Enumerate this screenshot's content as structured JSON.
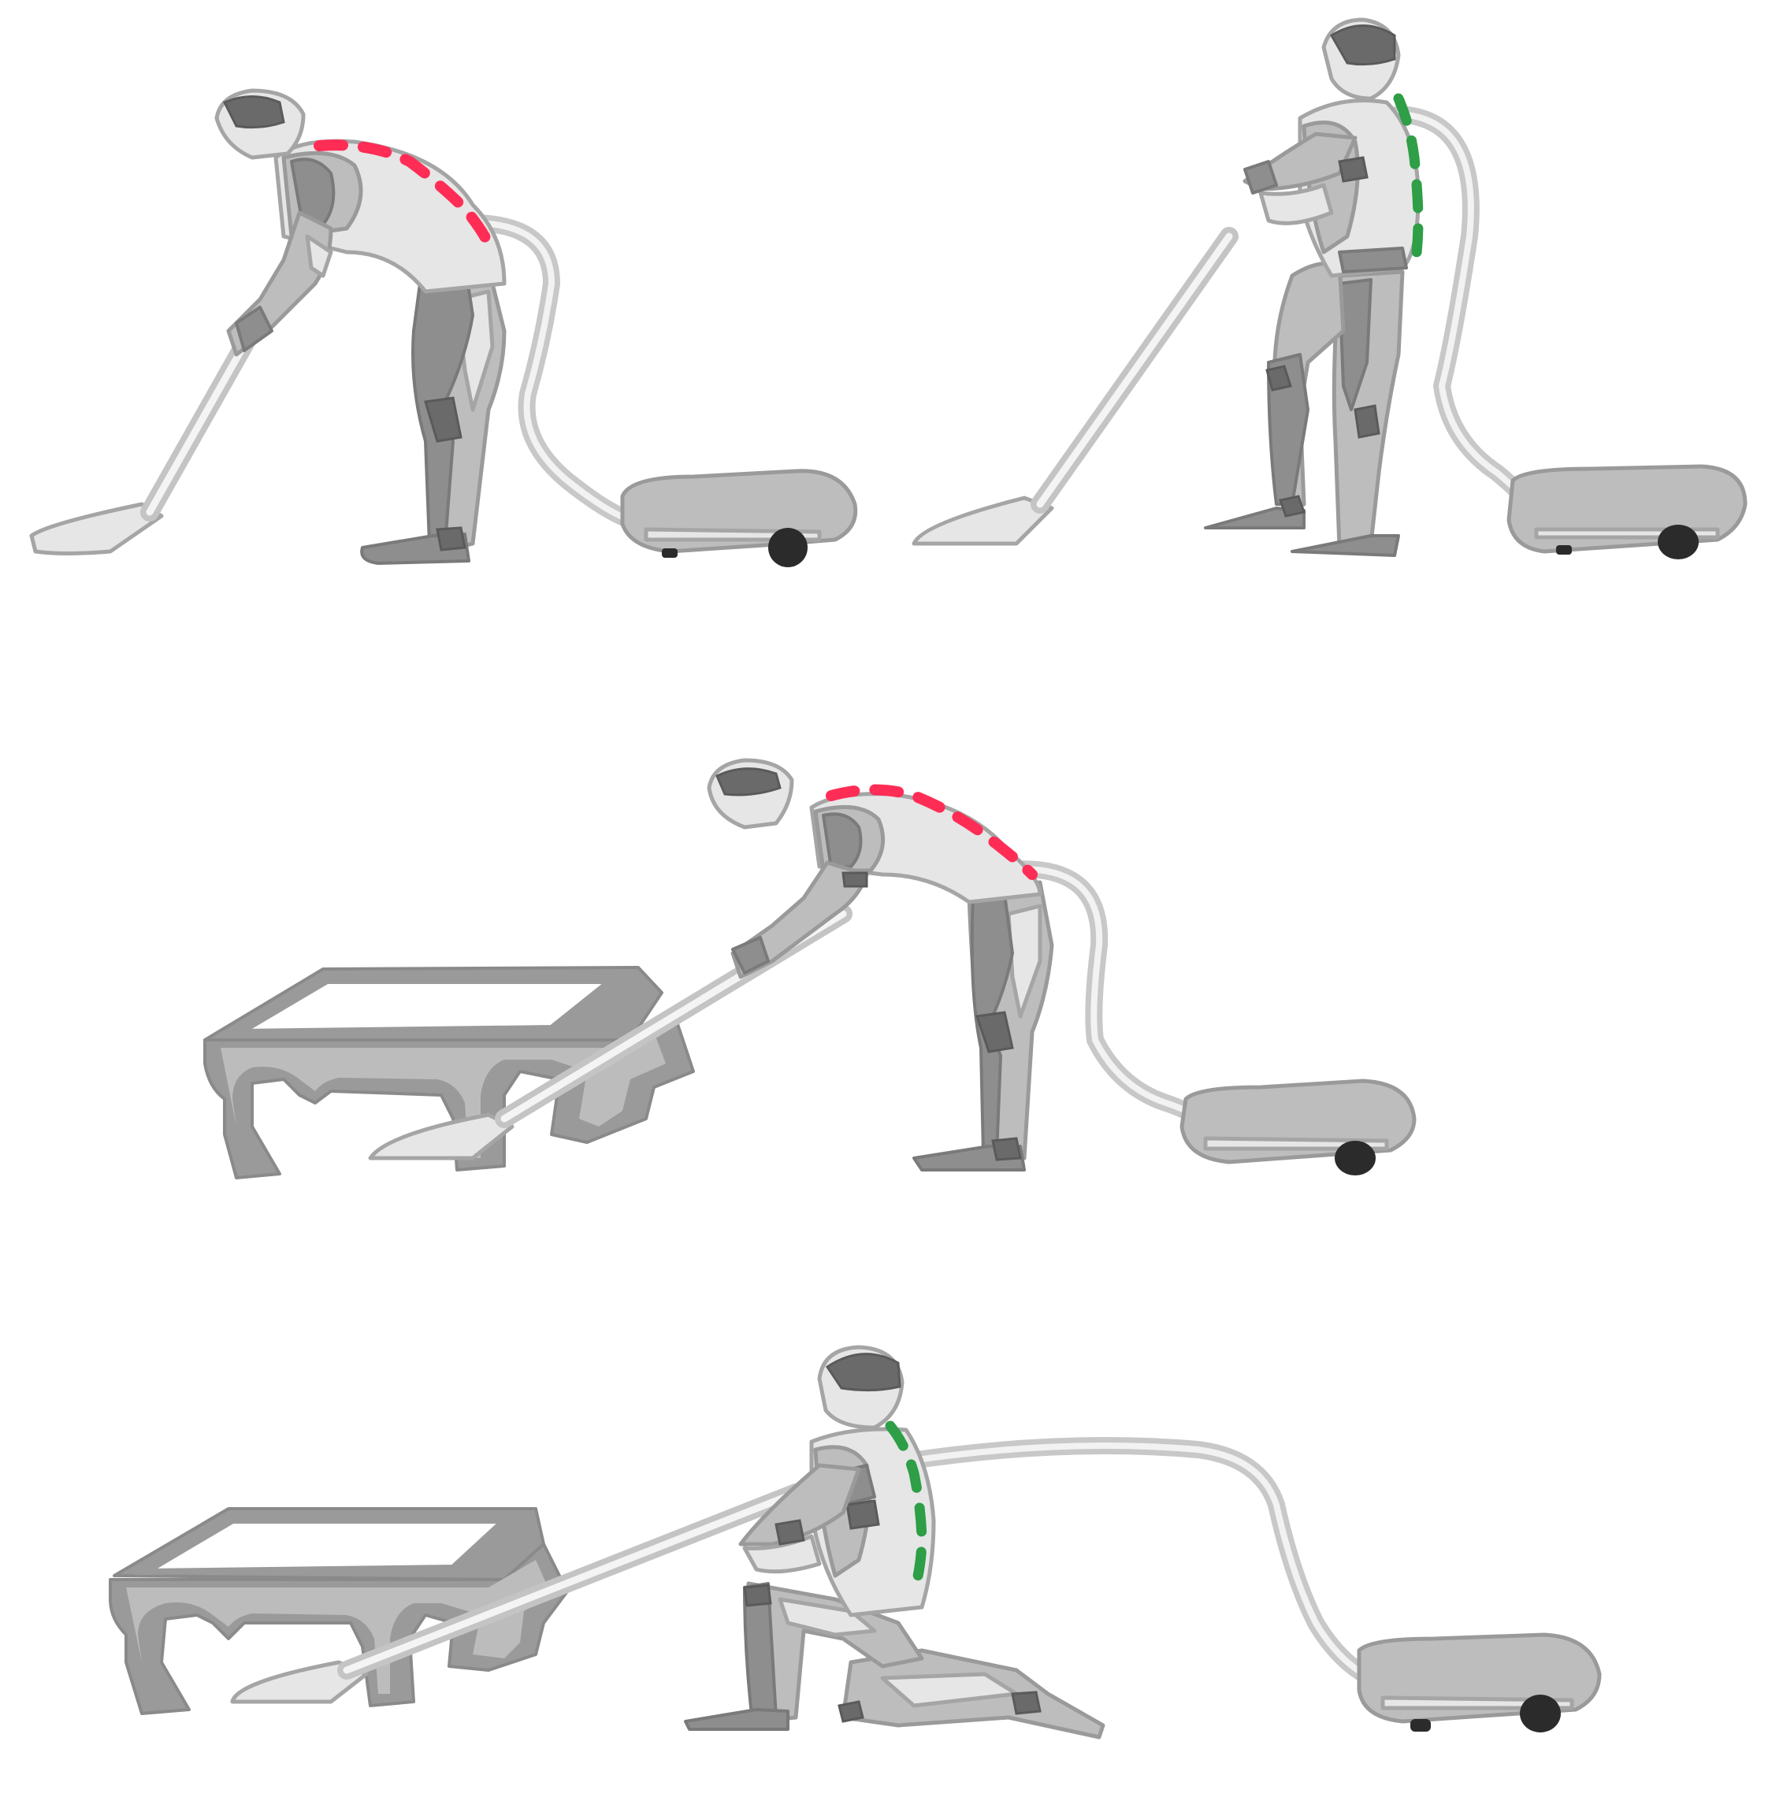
{
  "colors": {
    "background": "#ffffff",
    "body_light": "#e6e6e6",
    "body_mid": "#bdbdbd",
    "body_dark": "#8e8e8e",
    "body_darker": "#6a6a6a",
    "outline": "#9a9a9a",
    "wheel": "#2b2b2b",
    "table": "#9a9a9a",
    "table_light": "#bcbcbc",
    "spine_bad": "#ff2d55",
    "spine_good": "#2e9e47"
  },
  "panels": [
    {
      "id": "panel-1",
      "posture": "bent-over",
      "spine": "bad",
      "furniture": "none"
    },
    {
      "id": "panel-2",
      "posture": "upright-lunge",
      "spine": "good",
      "furniture": "none"
    },
    {
      "id": "panel-3",
      "posture": "bent-over",
      "spine": "bad",
      "furniture": "table"
    },
    {
      "id": "panel-4",
      "posture": "kneeling",
      "spine": "good",
      "furniture": "table"
    }
  ]
}
